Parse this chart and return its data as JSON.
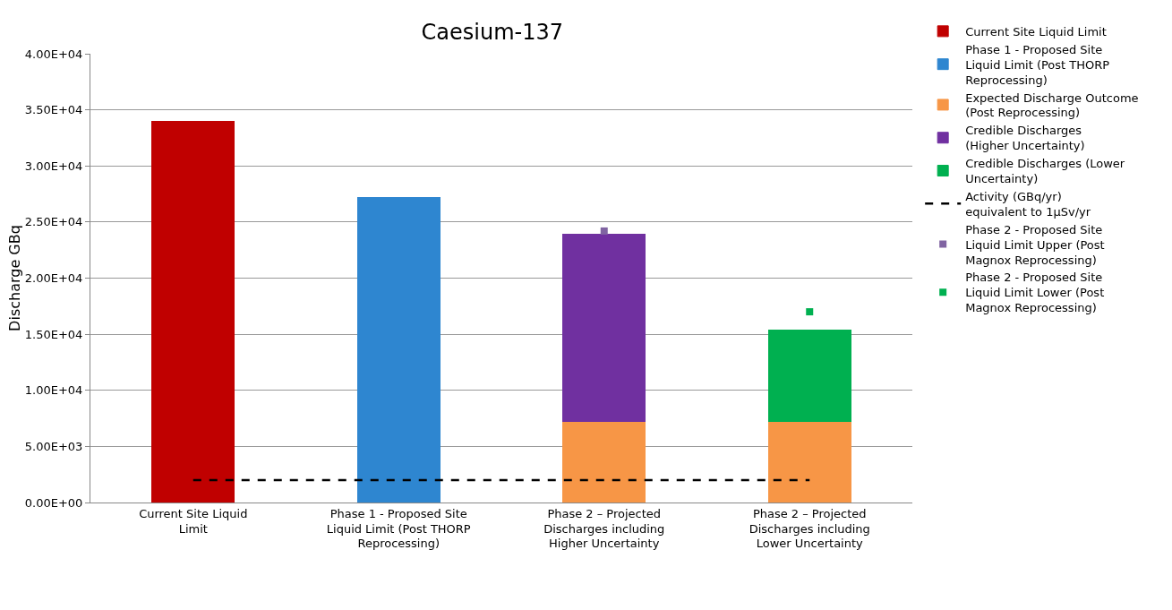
{
  "chart_data": {
    "type": "bar",
    "title": "Caesium-137",
    "ylabel": "Discharge GBq",
    "stacked": true,
    "categories": [
      "Current Site Liquid Limit",
      "Phase 1 - Proposed Site Liquid Limit (Post THORP Reprocessing)",
      "Phase 2 – Projected Discharges including Higher Uncertainty",
      "Phase 2 – Projected Discharges including Lower Uncertainty"
    ],
    "series": [
      {
        "name": "Current Site Liquid Limit",
        "color": "#c00000",
        "values": [
          34000,
          null,
          null,
          null
        ]
      },
      {
        "name": "Phase 1 - Proposed Site Liquid Limit (Post THORP Reprocessing)",
        "color": "#2e86d0",
        "values": [
          null,
          27200,
          null,
          null
        ]
      },
      {
        "name": "Expected Discharge Outcome (Post Reprocessing)",
        "color": "#f79646",
        "values": [
          null,
          null,
          7200,
          7200
        ]
      },
      {
        "name": "Credible Discharges (Higher Uncertainty)",
        "color": "#7030a0",
        "values": [
          null,
          null,
          16700,
          null
        ]
      },
      {
        "name": "Credible Discharges (Lower Uncertainty)",
        "color": "#00b050",
        "values": [
          null,
          null,
          null,
          8200
        ]
      },
      {
        "name": "Activity (GBq/yr) equivalent to 1µSv/yr",
        "type": "line",
        "line_style": "dashed",
        "color": "#000000",
        "values": [
          2000,
          2000,
          2000,
          2000
        ]
      },
      {
        "name": "Phase 2 - Proposed Site Liquid Limit Upper (Post Magnox Reprocessing)",
        "type": "scatter",
        "color": "#8064a2",
        "values": [
          null,
          null,
          24200,
          null
        ]
      },
      {
        "name": "Phase 2 - Proposed Site Liquid Limit Lower (Post Magnox Reprocessing)",
        "type": "scatter",
        "color": "#00b050",
        "values": [
          null,
          null,
          null,
          17000
        ]
      }
    ],
    "ylim": [
      0,
      40000
    ],
    "yticks": [
      {
        "value": 0,
        "label": "0.00E+00"
      },
      {
        "value": 5000,
        "label": "5.00E+03"
      },
      {
        "value": 10000,
        "label": "1.00E+04"
      },
      {
        "value": 15000,
        "label": "1.50E+04"
      },
      {
        "value": 20000,
        "label": "2.00E+04"
      },
      {
        "value": 25000,
        "label": "2.50E+04"
      },
      {
        "value": 30000,
        "label": "3.00E+04"
      },
      {
        "value": 35000,
        "label": "3.50E+04"
      },
      {
        "value": 40000,
        "label": "4.00E+04"
      }
    ],
    "grid": "y",
    "legend": "right"
  }
}
